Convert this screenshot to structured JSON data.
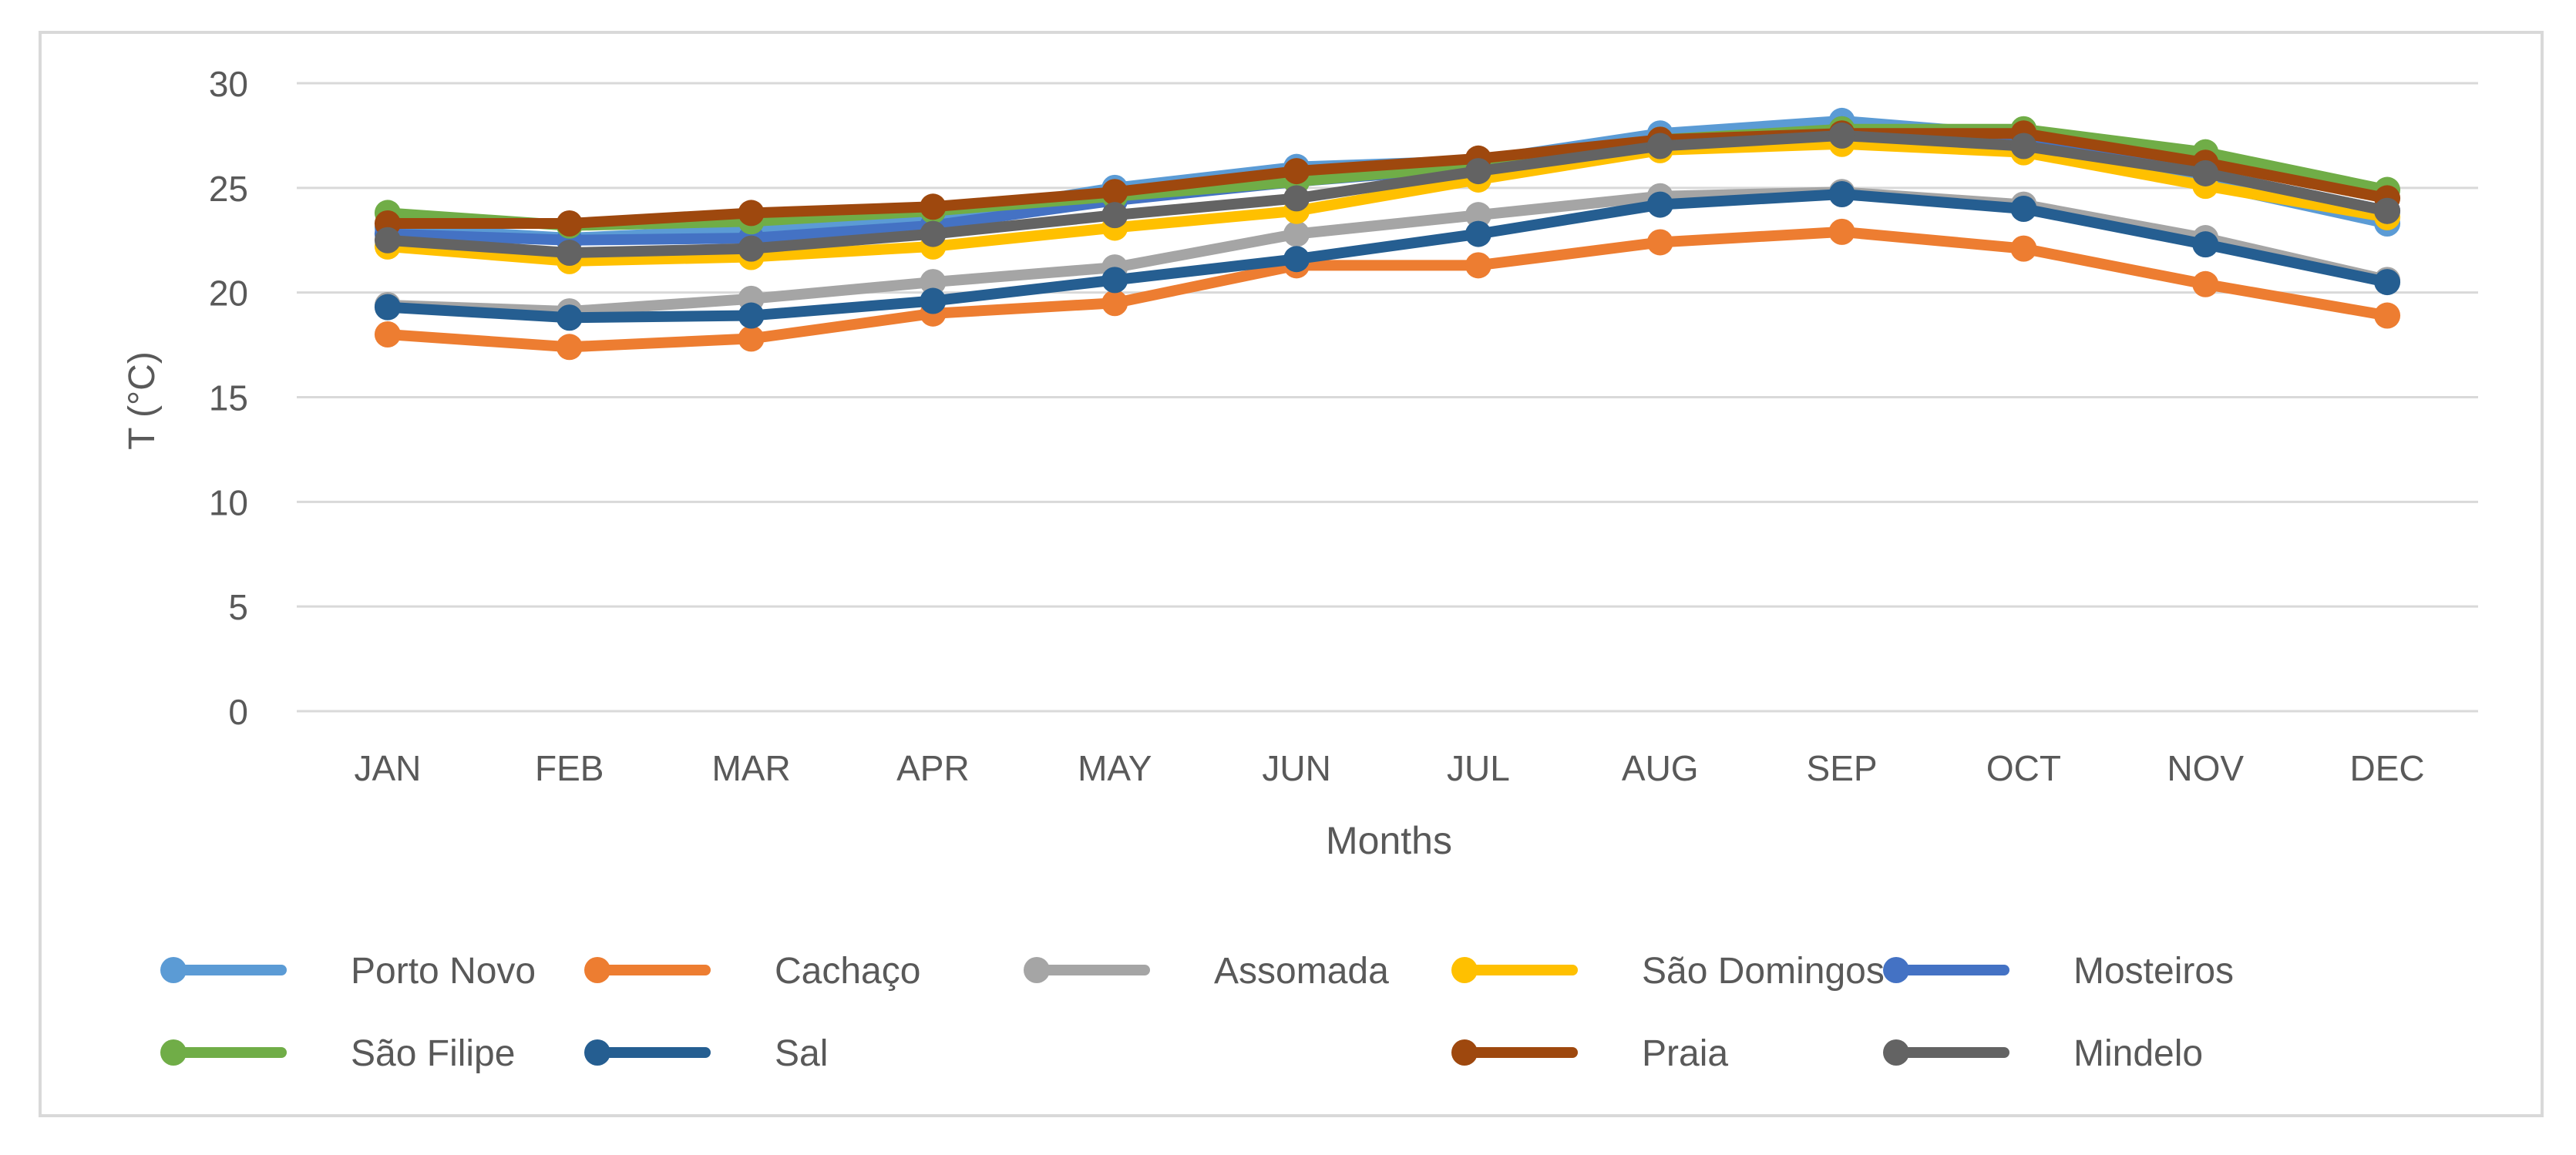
{
  "chart_data": {
    "type": "line",
    "title": "",
    "xlabel": "Months",
    "ylabel": "T (°C)",
    "ylim": [
      0,
      30
    ],
    "yticks": [
      0,
      5,
      10,
      15,
      20,
      25,
      30
    ],
    "grid": "horizontal",
    "legend_position": "bottom",
    "categories": [
      "JAN",
      "FEB",
      "MAR",
      "APR",
      "MAY",
      "JUN",
      "JUL",
      "AUG",
      "SEP",
      "OCT",
      "NOV",
      "DEC"
    ],
    "series": [
      {
        "name": "Porto Novo",
        "color": "#5b9bd5",
        "values": [
          23.1,
          22.6,
          23.0,
          23.6,
          25.0,
          26.0,
          26.3,
          27.6,
          28.2,
          27.5,
          25.2,
          23.3
        ]
      },
      {
        "name": "Cachaço",
        "color": "#ed7d31",
        "values": [
          18.0,
          17.4,
          17.8,
          19.0,
          19.5,
          21.3,
          21.3,
          22.4,
          22.9,
          22.1,
          20.4,
          18.9
        ]
      },
      {
        "name": "Assomada",
        "color": "#a5a5a5",
        "values": [
          19.4,
          19.1,
          19.7,
          20.5,
          21.2,
          22.8,
          23.7,
          24.6,
          24.8,
          24.2,
          22.6,
          20.6
        ]
      },
      {
        "name": "São Domingos",
        "color": "#ffc000",
        "values": [
          22.2,
          21.5,
          21.7,
          22.2,
          23.1,
          23.9,
          25.4,
          26.8,
          27.1,
          26.7,
          25.1,
          23.6
        ]
      },
      {
        "name": "Mosteiros",
        "color": "#4472c4",
        "values": [
          22.8,
          22.5,
          22.6,
          23.2,
          24.4,
          25.3,
          26.0,
          27.2,
          27.8,
          27.2,
          25.7,
          23.9
        ]
      },
      {
        "name": "São Filipe",
        "color": "#70ad47",
        "values": [
          23.8,
          23.2,
          23.4,
          23.9,
          24.6,
          25.3,
          26.1,
          27.3,
          27.8,
          27.8,
          26.7,
          24.9
        ]
      },
      {
        "name": "Sal",
        "color": "#255e91",
        "values": [
          19.3,
          18.8,
          18.9,
          19.6,
          20.6,
          21.6,
          22.8,
          24.2,
          24.7,
          24.0,
          22.3,
          20.5
        ]
      },
      {
        "name": "Praia",
        "color": "#9e480e",
        "values": [
          23.3,
          23.3,
          23.8,
          24.1,
          24.8,
          25.8,
          26.4,
          27.3,
          27.6,
          27.6,
          26.2,
          24.5
        ]
      },
      {
        "name": "Mindelo",
        "color": "#636363",
        "values": [
          22.5,
          21.9,
          22.1,
          22.8,
          23.7,
          24.5,
          25.8,
          27.0,
          27.5,
          27.0,
          25.7,
          23.9
        ]
      }
    ]
  }
}
